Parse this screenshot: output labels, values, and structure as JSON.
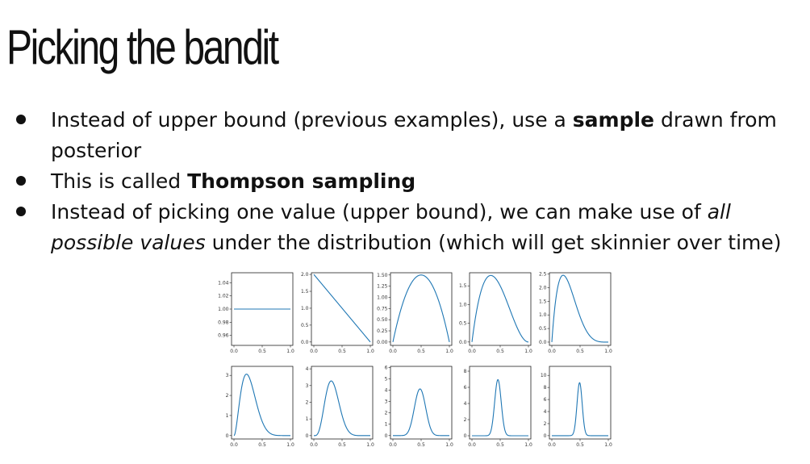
{
  "slide": {
    "title": "Picking the bandit",
    "bullets": [
      {
        "parts": [
          {
            "text": "Instead of upper bound (previous examples), use a ",
            "style": "normal"
          },
          {
            "text": "sample",
            "style": "bold"
          },
          {
            "text": " drawn from posterior",
            "style": "normal"
          }
        ]
      },
      {
        "parts": [
          {
            "text": "This is called ",
            "style": "normal"
          },
          {
            "text": "Thompson sampling",
            "style": "bold"
          }
        ]
      },
      {
        "parts": [
          {
            "text": "Instead of picking one value (upper bound), we can make use of ",
            "style": "normal"
          },
          {
            "text": "all possible values",
            "style": "italic"
          },
          {
            "text": " under the distribution (which will get skinnier over time)",
            "style": "normal"
          }
        ]
      }
    ]
  },
  "chart_data": [
    {
      "type": "line",
      "alpha": 1,
      "beta": 1,
      "xlim": [
        0,
        1
      ],
      "ylim": [
        0.945,
        1.055
      ],
      "xticks": [
        "0.0",
        "0.5",
        "1.0"
      ],
      "yticks": [
        0.96,
        0.98,
        1.0,
        1.02,
        1.04
      ],
      "yticklabels": [
        "0.96",
        "0.98",
        "1.00",
        "1.02",
        "1.04"
      ],
      "line_color": "#1f77b4"
    },
    {
      "type": "line",
      "alpha": 1,
      "beta": 2,
      "xlim": [
        0,
        1
      ],
      "ylim": [
        -0.1,
        2.05
      ],
      "xticks": [
        "0.0",
        "0.5",
        "1.0"
      ],
      "yticks": [
        0,
        0.5,
        1,
        1.5,
        2
      ],
      "yticklabels": [
        "0.0",
        "0.5",
        "1.0",
        "1.5",
        "2.0"
      ],
      "line_color": "#1f77b4"
    },
    {
      "type": "line",
      "alpha": 2,
      "beta": 2,
      "xlim": [
        0,
        1
      ],
      "ylim": [
        -0.075,
        1.55
      ],
      "xticks": [
        "0.0",
        "0.5",
        "1.0"
      ],
      "yticks": [
        0,
        0.25,
        0.5,
        0.75,
        1,
        1.25,
        1.5
      ],
      "yticklabels": [
        "0.00",
        "0.25",
        "0.50",
        "0.75",
        "1.00",
        "1.25",
        "1.50"
      ],
      "line_color": "#1f77b4"
    },
    {
      "type": "line",
      "alpha": 2,
      "beta": 3,
      "xlim": [
        0,
        1
      ],
      "ylim": [
        -0.09,
        1.85
      ],
      "xticks": [
        "0.0",
        "0.5",
        "1.0"
      ],
      "yticks": [
        0,
        0.5,
        1,
        1.5
      ],
      "yticklabels": [
        "0.0",
        "0.5",
        "1.0",
        "1.5"
      ],
      "line_color": "#1f77b4"
    },
    {
      "type": "line",
      "alpha": 2,
      "beta": 5,
      "xlim": [
        0,
        1
      ],
      "ylim": [
        -0.12,
        2.55
      ],
      "xticks": [
        "0.0",
        "0.5",
        "1.0"
      ],
      "yticks": [
        0,
        0.5,
        1,
        1.5,
        2,
        2.5
      ],
      "yticklabels": [
        "0.0",
        "0.5",
        "1.0",
        "1.5",
        "2.0",
        "2.5"
      ],
      "line_color": "#1f77b4"
    },
    {
      "type": "line",
      "alpha": 3,
      "beta": 8,
      "xlim": [
        0,
        1
      ],
      "ylim": [
        -0.17,
        3.45
      ],
      "xticks": [
        "0.0",
        "0.5",
        "1.0"
      ],
      "yticks": [
        0,
        1,
        2,
        3
      ],
      "yticklabels": [
        "0",
        "1",
        "2",
        "3"
      ],
      "line_color": "#1f77b4"
    },
    {
      "type": "line",
      "alpha": 5,
      "beta": 10,
      "xlim": [
        0,
        1
      ],
      "ylim": [
        -0.2,
        4.15
      ],
      "xticks": [
        "0.0",
        "0.5",
        "1.0"
      ],
      "yticks": [
        0,
        1,
        2,
        3,
        4
      ],
      "yticklabels": [
        "0",
        "1",
        "2",
        "3",
        "4"
      ],
      "line_color": "#1f77b4"
    },
    {
      "type": "line",
      "alpha": 13,
      "beta": 14,
      "xlim": [
        0,
        1
      ],
      "ylim": [
        -0.3,
        6.1
      ],
      "xticks": [
        "0.0",
        "0.5",
        "1.0"
      ],
      "yticks": [
        0,
        1,
        2,
        3,
        4,
        5,
        6
      ],
      "yticklabels": [
        "0",
        "1",
        "2",
        "3",
        "4",
        "5",
        "6"
      ],
      "line_color": "#1f77b4"
    },
    {
      "type": "line",
      "alpha": 35,
      "beta": 41,
      "xlim": [
        0,
        1
      ],
      "ylim": [
        -0.4,
        8.6
      ],
      "xticks": [
        "0.0",
        "0.5",
        "1.0"
      ],
      "yticks": [
        0,
        2,
        4,
        6,
        8
      ],
      "yticklabels": [
        "0",
        "2",
        "4",
        "6",
        "8"
      ],
      "line_color": "#1f77b4"
    },
    {
      "type": "line",
      "alpha": 60,
      "beta": 62,
      "xlim": [
        0,
        1
      ],
      "ylim": [
        -0.55,
        11.5
      ],
      "xticks": [
        "0.0",
        "0.5",
        "1.0"
      ],
      "yticks": [
        0,
        2,
        4,
        6,
        8,
        10
      ],
      "yticklabels": [
        "0",
        "2",
        "4",
        "6",
        "8",
        "10"
      ],
      "line_color": "#1f77b4"
    }
  ]
}
